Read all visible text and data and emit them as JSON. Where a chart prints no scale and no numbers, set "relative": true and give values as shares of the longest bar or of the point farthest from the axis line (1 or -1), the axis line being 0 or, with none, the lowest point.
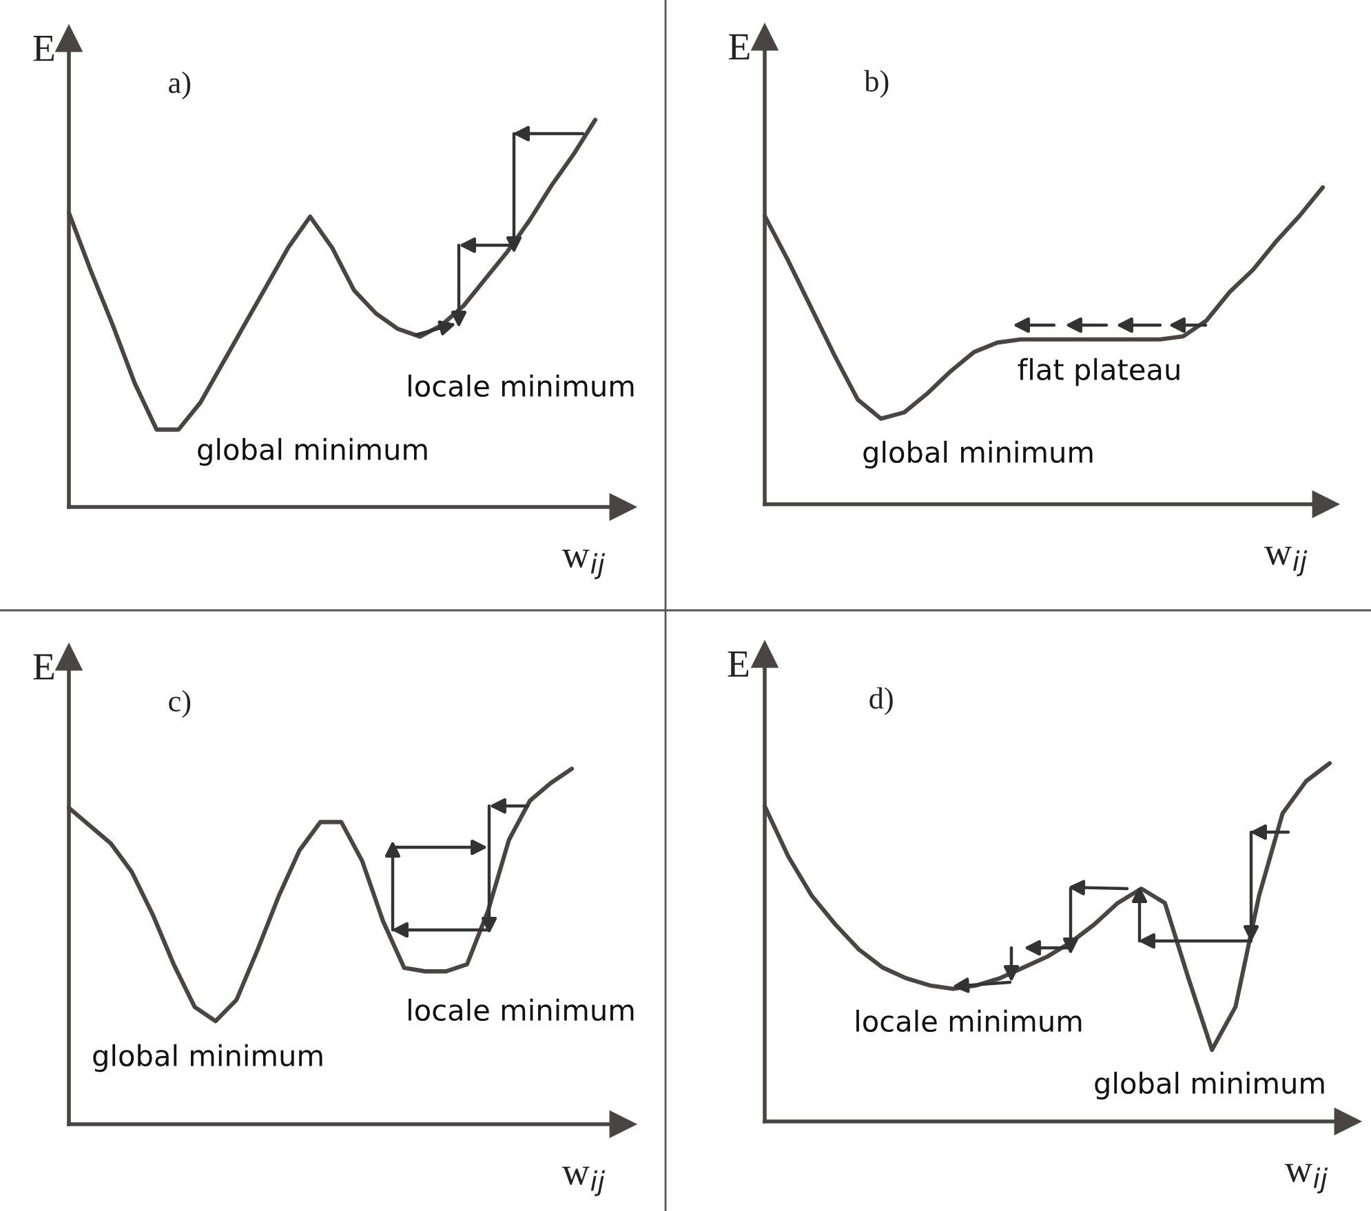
{
  "chart_data": [
    {
      "type": "line",
      "relative": true,
      "title": "a)",
      "ylabel": "E",
      "xlabel": "w$_{ij}$",
      "categories": [
        null,
        null,
        null,
        null,
        null,
        null,
        null,
        null,
        null,
        null,
        null,
        null,
        null,
        null,
        null,
        null,
        null,
        null,
        null,
        null,
        null,
        null,
        null,
        null,
        null
      ],
      "series": [
        {
          "color": "#4a4444",
          "values": [
            0.76,
            0.61,
            0.47,
            0.32,
            0.2,
            0.2,
            0.27,
            0.37,
            0.47,
            0.57,
            0.67,
            0.75,
            0.67,
            0.56,
            0.5,
            0.46,
            0.44,
            0.47,
            0.52,
            0.59,
            0.66,
            0.74,
            0.83,
            0.91,
            1
          ]
        }
      ],
      "annotations": [
        "locale minimum",
        "global minimum"
      ]
    },
    {
      "type": "line",
      "relative": true,
      "title": "b)",
      "ylabel": "E",
      "xlabel": "w$_{ij}$",
      "categories": [
        null,
        null,
        null,
        null,
        null,
        null,
        null,
        null,
        null,
        null,
        null,
        null,
        null,
        null,
        null,
        null,
        null,
        null,
        null,
        null,
        null,
        null,
        null,
        null,
        null
      ],
      "series": [
        {
          "color": "#4a4444",
          "values": [
            0.91,
            0.77,
            0.62,
            0.47,
            0.33,
            0.27,
            0.29,
            0.35,
            0.42,
            0.48,
            0.51,
            0.52,
            0.52,
            0.52,
            0.52,
            0.52,
            0.52,
            0.52,
            0.53,
            0.58,
            0.67,
            0.74,
            0.83,
            0.91,
            1
          ]
        }
      ],
      "annotations": [
        "flat plateau",
        "global minimum"
      ]
    },
    {
      "type": "line",
      "relative": true,
      "title": "c)",
      "ylabel": "E",
      "xlabel": "w$_{ij}$",
      "categories": [
        null,
        null,
        null,
        null,
        null,
        null,
        null,
        null,
        null,
        null,
        null,
        null,
        null,
        null,
        null,
        null,
        null,
        null,
        null,
        null,
        null,
        null,
        null,
        null,
        null
      ],
      "series": [
        {
          "color": "#4a4444",
          "values": [
            0.89,
            0.84,
            0.79,
            0.71,
            0.59,
            0.45,
            0.33,
            0.29,
            0.35,
            0.49,
            0.64,
            0.77,
            0.85,
            0.85,
            0.74,
            0.57,
            0.44,
            0.43,
            0.43,
            0.45,
            0.6,
            0.8,
            0.91,
            0.96,
            1
          ]
        }
      ],
      "annotations": [
        "global minimum",
        "locale minimum"
      ]
    },
    {
      "type": "line",
      "relative": true,
      "title": "d)",
      "ylabel": "E",
      "xlabel": "w$_{ij}$",
      "categories": [
        null,
        null,
        null,
        null,
        null,
        null,
        null,
        null,
        null,
        null,
        null,
        null,
        null,
        null,
        null,
        null,
        null,
        null,
        null,
        null,
        null,
        null,
        null,
        null,
        null
      ],
      "series": [
        {
          "color": "#4a4444",
          "values": [
            0.88,
            0.74,
            0.63,
            0.55,
            0.48,
            0.43,
            0.4,
            0.38,
            0.37,
            0.38,
            0.4,
            0.43,
            0.46,
            0.5,
            0.55,
            0.61,
            0.65,
            0.61,
            0.4,
            0.2,
            0.32,
            0.63,
            0.86,
            0.95,
            1
          ]
        }
      ],
      "annotations": [
        "locale minimum",
        "global minimum"
      ]
    }
  ]
}
